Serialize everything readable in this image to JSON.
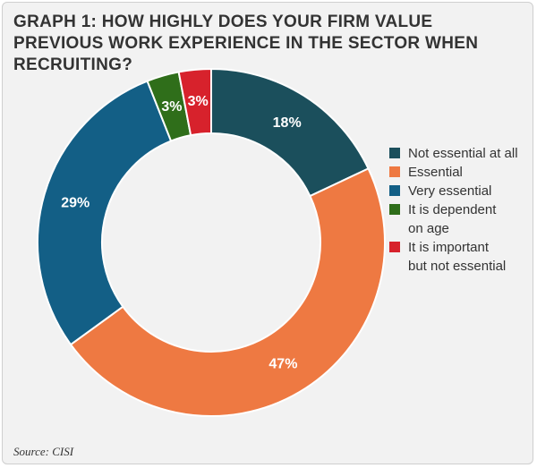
{
  "title": "GRAPH 1: HOW HIGHLY DOES YOUR FIRM VALUE PREVIOUS WORK EXPERIENCE IN THE SECTOR WHEN RECRUITING?",
  "source": "Source: CISI",
  "colors": {
    "background": "#f2f2f2",
    "text": "#333333"
  },
  "chart_data": {
    "type": "pie",
    "variant": "donut",
    "start": "top (12 o'clock), clockwise",
    "legend_position": "right",
    "slices": [
      {
        "label": "Not essential at all",
        "legend_text": [
          "Not essential at all"
        ],
        "value": 18,
        "display": "18%",
        "color": "#1b4f5c"
      },
      {
        "label": "Essential",
        "legend_text": [
          "Essential"
        ],
        "value": 47,
        "display": "47%",
        "color": "#ee7942"
      },
      {
        "label": "Very essential",
        "legend_text": [
          "Very essential"
        ],
        "value": 29,
        "display": "29%",
        "color": "#135f86"
      },
      {
        "label": "It is dependent on age",
        "legend_text": [
          "It is dependent",
          "on age"
        ],
        "value": 3,
        "display": "3%",
        "color": "#2f6e1a"
      },
      {
        "label": "It is important but not essential",
        "legend_text": [
          "It is important",
          "but not essential"
        ],
        "value": 3,
        "display": "3%",
        "color": "#d7222c"
      }
    ]
  }
}
